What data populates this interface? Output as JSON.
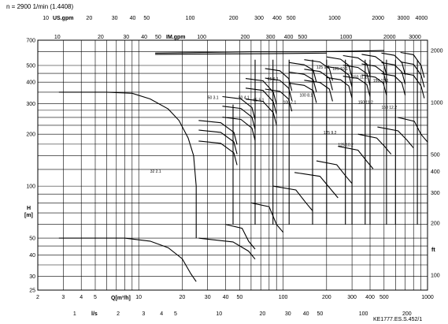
{
  "chart_data": {
    "type": "line",
    "speed_label": "n = 2900 1/min (1.4408)",
    "reference": "KE1777.ES.S.452/1",
    "x_axis": {
      "label": "Q[m³/h]",
      "scale": "log",
      "range": [
        2,
        1000
      ],
      "ticks": [
        "2",
        "3",
        "4",
        "5",
        "10",
        "20",
        "30",
        "40",
        "50",
        "100",
        "200",
        "300",
        "400",
        "500",
        "1000"
      ]
    },
    "x_axis_ls": {
      "label": "l/s",
      "ticks": [
        "1",
        "2",
        "3",
        "4",
        "5",
        "10",
        "20",
        "30",
        "40",
        "50",
        "100",
        "200"
      ]
    },
    "x_axis_usgpm": {
      "label": "US.gpm",
      "ticks": [
        "10",
        "20",
        "30",
        "40",
        "50",
        "100",
        "200",
        "300",
        "400",
        "500",
        "1000",
        "2000",
        "3000",
        "4000"
      ]
    },
    "x_axis_imgpm": {
      "label": "IM.gpm",
      "ticks": [
        "10",
        "20",
        "30",
        "40",
        "50",
        "100",
        "200",
        "300",
        "400",
        "500",
        "1000",
        "2000",
        "3000"
      ]
    },
    "y_axis": {
      "label": "H [m]",
      "scale": "log",
      "range": [
        25,
        700
      ],
      "ticks": [
        "25",
        "30",
        "40",
        "50",
        "100",
        "200",
        "300",
        "400",
        "500",
        "700"
      ]
    },
    "y_axis_ft": {
      "label": "ft",
      "ticks": [
        "100",
        "200",
        "300",
        "400",
        "500",
        "1000",
        "2000"
      ]
    },
    "grid": true,
    "regions": [
      {
        "label": "32  2.1",
        "qmin": 2.8,
        "qmax": 25,
        "hmin": 50,
        "hmax": 350
      },
      {
        "label": "50  3.1",
        "qmax": 45,
        "hmax": 330
      },
      {
        "label": "50  4.1",
        "qmax": 64,
        "hmax": 600
      },
      {
        "label": "65  5.1",
        "qmax": 85,
        "hmax": 600
      },
      {
        "label": "65  6.1",
        "qmax": 110,
        "hmax": 600
      },
      {
        "label": "100  7.1",
        "qmax": 160,
        "hmax": 600
      },
      {
        "label": "100  8.1",
        "qmax": 200,
        "hmax": 600
      },
      {
        "label": "125  9.1",
        "qmax": 270,
        "hmax": 600
      },
      {
        "label": "125  9.2",
        "qmax": 300,
        "hmax": 600
      },
      {
        "label": "125  10.1",
        "qmax": 370,
        "hmax": 600
      },
      {
        "label": "125  10.2",
        "qmax": 400,
        "hmax": 600
      },
      {
        "label": "150  11.1",
        "qmax": 520,
        "hmax": 600
      },
      {
        "label": "150  11.2",
        "qmax": 600,
        "hmax": 600
      },
      {
        "label": "150  12.1",
        "qmax": 850,
        "hmax": 600
      },
      {
        "label": "150  12.2",
        "qmax": 1000,
        "hmax": 600
      }
    ]
  }
}
